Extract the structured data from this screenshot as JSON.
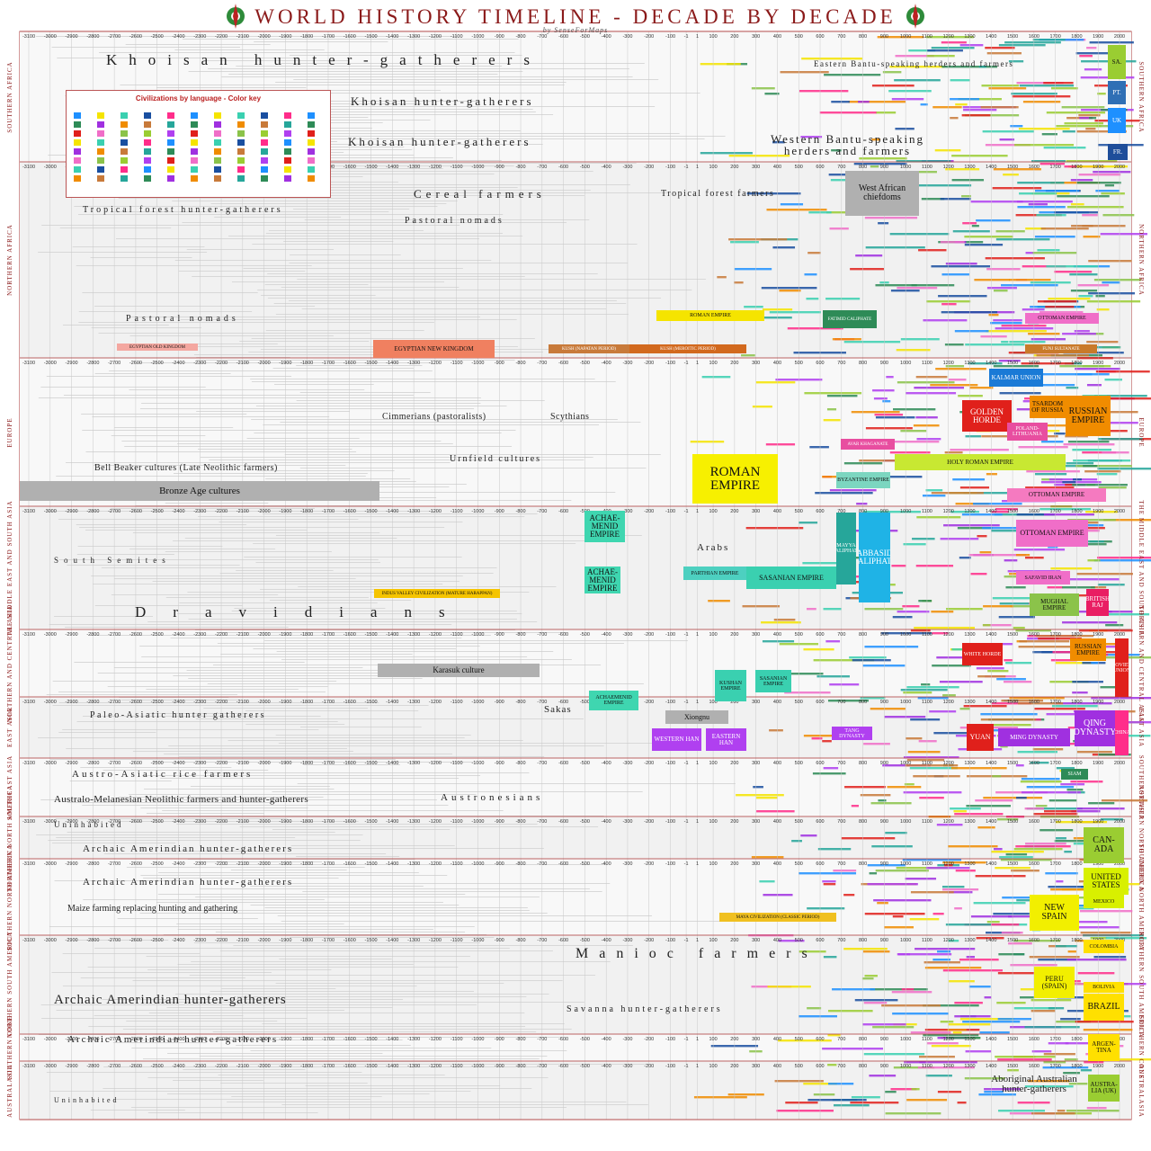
{
  "header": {
    "title": "WORLD HISTORY TIMELINE - DECADE BY DECADE",
    "subtitle": "by SenseForMaps"
  },
  "legend": {
    "title": "Civilizations by language - Color key"
  },
  "years": [
    -3100,
    -3000,
    -2900,
    -2800,
    -2700,
    -2600,
    -2500,
    -2400,
    -2300,
    -2200,
    -2100,
    -2000,
    -1900,
    -1800,
    -1700,
    -1600,
    -1500,
    -1400,
    -1300,
    -1200,
    -1100,
    -1000,
    -900,
    -800,
    -700,
    -600,
    -500,
    -400,
    -300,
    -200,
    -100,
    -1,
    1,
    100,
    200,
    300,
    400,
    500,
    600,
    700,
    800,
    900,
    1000,
    1100,
    1200,
    1300,
    1400,
    1500,
    1600,
    1700,
    1800,
    1900,
    2000
  ],
  "regions": [
    "SOUTHERN AFRICA",
    "NORTHERN AFRICA",
    "EUROPE",
    "THE MIDDLE EAST AND SOUTH ASIA",
    "NORTHERN AND CENTRAL ASIA",
    "EAST ASIA",
    "SOUTHEAST ASIA",
    "NORTHERN NORTH AMERICA",
    "SOUTHERN NORTH AMERICA",
    "NORTHERN SOUTH AMERICA",
    "SOUTHERN CONE",
    "AUSTRALASIA"
  ],
  "texts": [
    "Khoisan hunter-gatherers",
    "Khoisan hunter-gatherers",
    "Khoisan hunter-gatherers",
    "Eastern Bantu-speaking herders and farmers",
    "Western Bantu-speaking herders and farmers",
    "Tropical forest hunter-gatherers",
    "Cereal farmers",
    "Tropical forest farmers",
    "Pastoral nomads",
    "Pastoral nomads",
    "Bell Beaker cultures (Late Neolithic farmers)",
    "Cimmerians (pastoralists)",
    "Scythians",
    "Urnfield cultures",
    "Dravidians",
    "Arabs",
    "South Semites",
    "Sakas",
    "Paleo-Asiatic hunter gatherers",
    "Austro-Asiatic rice farmers",
    "Australo-Melanesian Neolithic farmers and hunter-gatherers",
    "Austronesians",
    "Uninhabited",
    "Archaic Amerindian hunter-gatherers",
    "Archaic Amerindian hunter-gatherers",
    "Maize farming replacing hunting and gathering",
    "Manioc farmers",
    "Archaic Amerindian hunter-gatherers",
    "Savanna hunter-gatherers",
    "Archaic Amerindian hunter-gatherers",
    "Aboriginal Australian hunter-gatherers",
    "Uninhabited"
  ],
  "blocks": [
    {
      "label": "SA.",
      "color": "#9acd32"
    },
    {
      "label": "PT.",
      "color": "#2f6fb5"
    },
    {
      "label": "UK",
      "color": "#1e90ff"
    },
    {
      "label": "FR.",
      "color": "#1f4e9a"
    },
    {
      "label": "West African chiefdoms",
      "color": "#b0b0b0"
    },
    {
      "label": "ROMAN EMPIRE",
      "color": "#f5e400"
    },
    {
      "label": "OTTOMAN EMPIRE",
      "color": "#f06ec8"
    },
    {
      "label": "EGYPTIAN OLD KINGDOM",
      "color": "#f4a7a0"
    },
    {
      "label": "EGYPTIAN NEW KINGDOM",
      "color": "#f08060"
    },
    {
      "label": "KUSH (NAPATAN PERIOD)",
      "color": "#c87a3a"
    },
    {
      "label": "KUSH (MEROITIC PERIOD)",
      "color": "#d2691e"
    },
    {
      "label": "FUNJ SULTANATE",
      "color": "#c97a2a"
    },
    {
      "label": "FATIMID CALIPHATE",
      "color": "#2e8b57"
    },
    {
      "label": "Bronze Age cultures",
      "color": "#b0b0b0"
    },
    {
      "label": "ROMAN EMPIRE",
      "color": "#f7f000"
    },
    {
      "label": "GOLDEN HORDE",
      "color": "#e0201b"
    },
    {
      "label": "TSARDOM OF RUSSIA",
      "color": "#f08c00"
    },
    {
      "label": "RUSSIAN EMPIRE",
      "color": "#f08c00"
    },
    {
      "label": "HOLY ROMAN EMPIRE",
      "color": "#c8e832"
    },
    {
      "label": "OTTOMAN EMPIRE",
      "color": "#f57ac0"
    },
    {
      "label": "KALMAR UNION",
      "color": "#1a7ad6"
    },
    {
      "label": "BYZANTINE EMPIRE",
      "color": "#7cd6c0"
    },
    {
      "label": "POLAND-LITHUANIA",
      "color": "#e84ea0"
    },
    {
      "label": "AVAR KHAGANATE",
      "color": "#e84ea0"
    },
    {
      "label": "ACHAE-MENID EMPIRE",
      "color": "#3fd6b0"
    },
    {
      "label": "ACHAE-MENID EMPIRE",
      "color": "#3fd6b0"
    },
    {
      "label": "UMAYYAD CALIPHATE",
      "color": "#26a69a"
    },
    {
      "label": "ABBASID CALIPHATE",
      "color": "#1fb3e6"
    },
    {
      "label": "PARTHIAN EMPIRE",
      "color": "#4dd0c0"
    },
    {
      "label": "SASANIAN EMPIRE",
      "color": "#3ad0b0"
    },
    {
      "label": "OTTOMAN EMPIRE",
      "color": "#f06ec8"
    },
    {
      "label": "SAFAVID IRAN",
      "color": "#f06ec8"
    },
    {
      "label": "MUGHAL EMPIRE",
      "color": "#8bc34a"
    },
    {
      "label": "BRITISH RAJ",
      "color": "#e91e63"
    },
    {
      "label": "INDUS VALLEY CIVILIZATION (MATURE HARAPPAN)",
      "color": "#f5c400"
    },
    {
      "label": "Karasuk culture",
      "color": "#b0b0b0"
    },
    {
      "label": "ACHAEMENID EMPIRE",
      "color": "#3fd6b0"
    },
    {
      "label": "KUSHAN EMPIRE",
      "color": "#3ad0b0"
    },
    {
      "label": "SASANIAN EMPIRE",
      "color": "#3ad0b0"
    },
    {
      "label": "WHITE HORDE",
      "color": "#e0201b"
    },
    {
      "label": "RUSSIAN EMPIRE",
      "color": "#f08c00"
    },
    {
      "label": "SOVIET UNION",
      "color": "#e0201b"
    },
    {
      "label": "Xiongnu",
      "color": "#b0b0b0"
    },
    {
      "label": "WESTERN HAN",
      "color": "#b040f0"
    },
    {
      "label": "EASTERN HAN",
      "color": "#b040f0"
    },
    {
      "label": "TANG DYNASTY",
      "color": "#b040f0"
    },
    {
      "label": "YUAN",
      "color": "#e0201b"
    },
    {
      "label": "MING DYNASTY",
      "color": "#a030e0"
    },
    {
      "label": "QING DYNASTY",
      "color": "#a030e0"
    },
    {
      "label": "CHINA",
      "color": "#ff2d8a"
    },
    {
      "label": "SIAM",
      "color": "#2e8b57"
    },
    {
      "label": "CAN-ADA",
      "color": "#9acd32"
    },
    {
      "label": "UNITED STATES",
      "color": "#d8f000"
    },
    {
      "label": "NEW SPAIN",
      "color": "#f2ef00"
    },
    {
      "label": "MEXICO",
      "color": "#d8f000"
    },
    {
      "label": "MAYA CIVILIZATION (CLASSIC PERIOD)",
      "color": "#f0c020"
    },
    {
      "label": "PERU (SPAIN)",
      "color": "#f2ef00"
    },
    {
      "label": "COLOMBIA",
      "color": "#ffe000"
    },
    {
      "label": "BOLIVIA",
      "color": "#ffe000"
    },
    {
      "label": "BRAZIL",
      "color": "#ffe000"
    },
    {
      "label": "ARGEN-TINA",
      "color": "#ffe000"
    },
    {
      "label": "AUSTRA-LIA (UK)",
      "color": "#9acd32"
    }
  ]
}
